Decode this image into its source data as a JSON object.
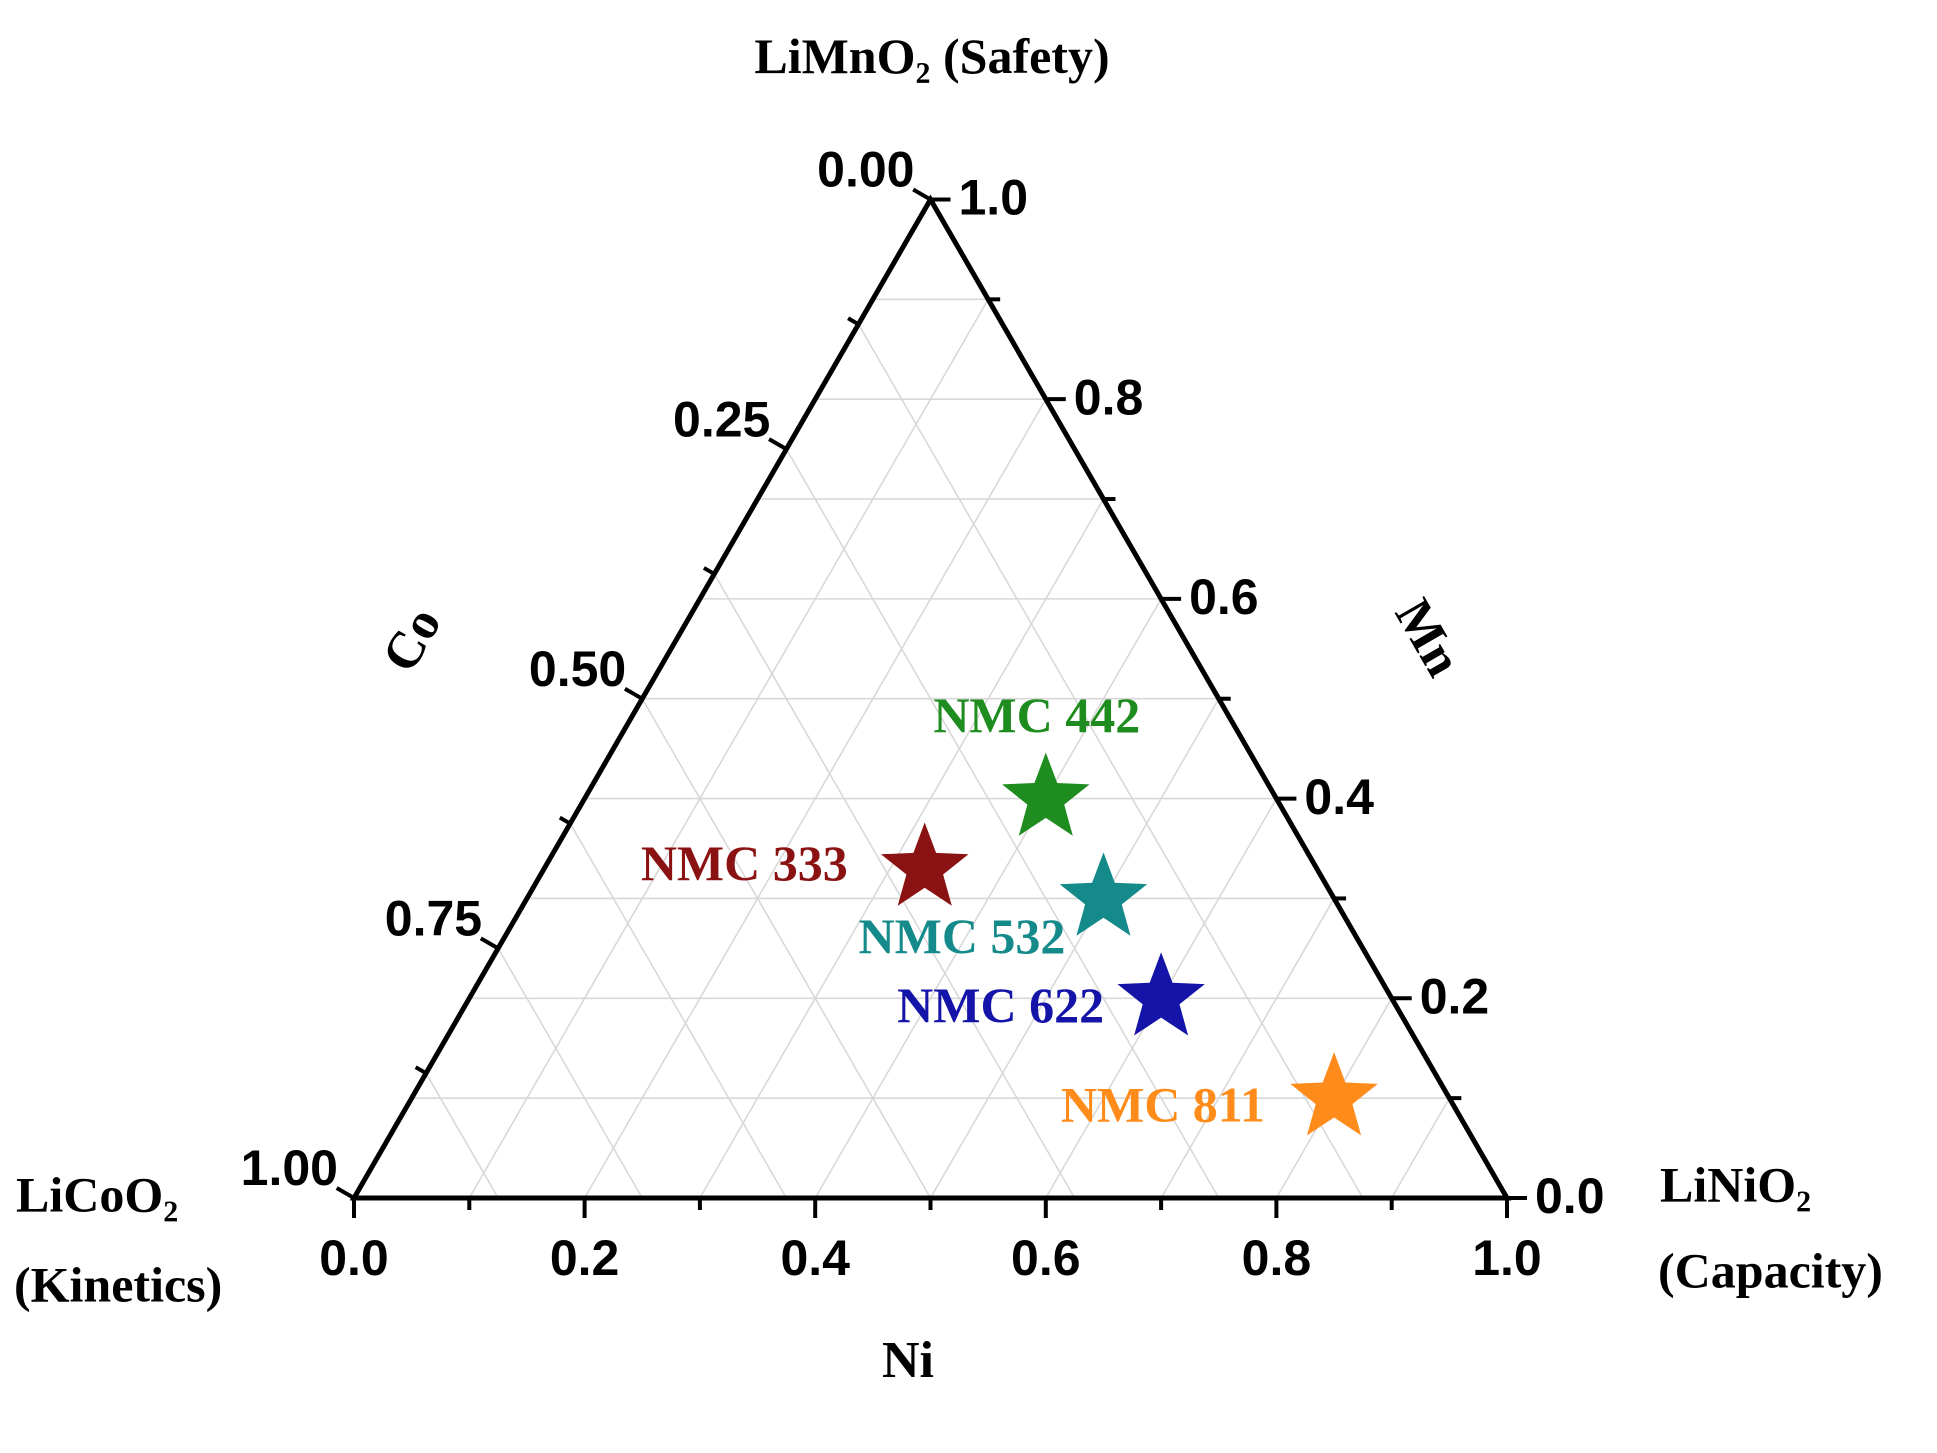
{
  "chart_data": {
    "type": "ternary",
    "corners": {
      "top": {
        "formula": "LiMnO₂",
        "property": "(Safety)"
      },
      "left": {
        "formula": "LiCoO₂",
        "property": "(Kinetics)"
      },
      "right": {
        "formula": "LiNiO₂",
        "property": "(Capacity)"
      }
    },
    "axes": {
      "ni": {
        "title": "Ni",
        "ticks": [
          {
            "value": 0,
            "label": "0.0"
          },
          0.2,
          0.4,
          0.6,
          0.8,
          {
            "value": 1,
            "label": "1.0"
          }
        ],
        "minor_ticks": [
          0.1,
          0.3,
          0.5,
          0.7,
          0.9
        ]
      },
      "mn": {
        "title": "Mn",
        "ticks": [
          {
            "value": 0,
            "label": "0.0"
          },
          0.2,
          0.4,
          0.6,
          0.8,
          {
            "value": 1,
            "label": "1.0"
          }
        ],
        "minor_ticks": [
          0.1,
          0.3,
          0.5,
          0.7,
          0.9
        ]
      },
      "co": {
        "title": "Co",
        "ticks": [
          {
            "value": 0,
            "label": "0.00"
          },
          {
            "value": 0.25,
            "label": "0.25"
          },
          {
            "value": 0.5,
            "label": "0.50"
          },
          {
            "value": 0.75,
            "label": "0.75"
          },
          {
            "value": 1,
            "label": "1.00"
          }
        ],
        "minor_ticks": [
          0.125,
          0.375,
          0.625,
          0.875
        ]
      }
    },
    "grid": true,
    "points": [
      {
        "name": "NMC 333",
        "color": "#8b1212",
        "ni": 0.33,
        "mn": 0.33,
        "co": 0.33
      },
      {
        "name": "NMC 442",
        "color": "#1e8c1e",
        "ni": 0.4,
        "mn": 0.4,
        "co": 0.2
      },
      {
        "name": "NMC 532",
        "color": "#148a8a",
        "ni": 0.5,
        "mn": 0.3,
        "co": 0.2
      },
      {
        "name": "NMC 622",
        "color": "#1414a8",
        "ni": 0.6,
        "mn": 0.2,
        "co": 0.2
      },
      {
        "name": "NMC 811",
        "color": "#ff8c1a",
        "ni": 0.8,
        "mn": 0.1,
        "co": 0.1
      }
    ]
  }
}
